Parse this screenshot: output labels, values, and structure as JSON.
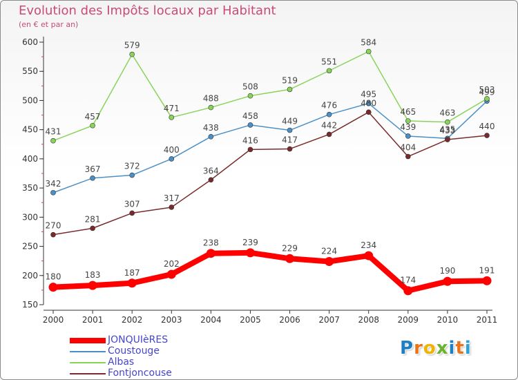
{
  "title": "Evolution des Impôts locaux par Habitant",
  "subtitle": "(en € et par an)",
  "brand": {
    "text": "Proxiti",
    "letter_colors": [
      "#1e7fc4",
      "#e8741c",
      "#f0b400",
      "#6ab42d",
      "#1e7fc4",
      "#e8741c",
      "#2da0d8"
    ]
  },
  "chart_data": {
    "type": "line",
    "title": "Evolution des Impôts locaux par Habitant",
    "subtitle": "(en € et par an)",
    "xlabel": "",
    "ylabel": "",
    "x": [
      "2000",
      "2001",
      "2002",
      "2003",
      "2004",
      "2005",
      "2006",
      "2007",
      "2008",
      "2009",
      "2010",
      "2011"
    ],
    "ylim": [
      150,
      600
    ],
    "yticks": [
      150,
      200,
      250,
      300,
      350,
      400,
      450,
      500,
      550,
      600
    ],
    "grid": false,
    "legend_position": "bottom-left",
    "series": [
      {
        "name": "JONQUIèRES",
        "color": "#ff0000",
        "values": [
          180,
          183,
          187,
          202,
          238,
          239,
          229,
          224,
          234,
          174,
          190,
          191
        ],
        "labels": [
          "180",
          "183",
          "187",
          "202",
          "238",
          "239",
          "229",
          "224",
          "234",
          "174",
          "190",
          "191"
        ]
      },
      {
        "name": "Coustouge",
        "color": "#4a90c8",
        "values": [
          342,
          367,
          372,
          400,
          438,
          458,
          449,
          476,
          495,
          439,
          435,
          499
        ],
        "labels": [
          "342",
          "367",
          "372",
          "400",
          "438",
          "458",
          "449",
          "476",
          "495",
          "439",
          "435",
          "499"
        ]
      },
      {
        "name": "Albas",
        "color": "#88d45a",
        "values": [
          431,
          457,
          579,
          471,
          488,
          508,
          519,
          551,
          584,
          465,
          463,
          503
        ],
        "labels": [
          "431",
          "457",
          "579",
          "471",
          "488",
          "508",
          "519",
          "551",
          "584",
          "465",
          "463",
          "503"
        ]
      },
      {
        "name": "Fontjoncouse",
        "color": "#7a2a2a",
        "values": [
          270,
          281,
          307,
          317,
          364,
          416,
          417,
          442,
          480,
          404,
          433,
          440
        ],
        "labels": [
          "270",
          "281",
          "307",
          "317",
          "364",
          "416",
          "417",
          "442",
          "480",
          "404",
          "433",
          "440"
        ]
      }
    ]
  }
}
